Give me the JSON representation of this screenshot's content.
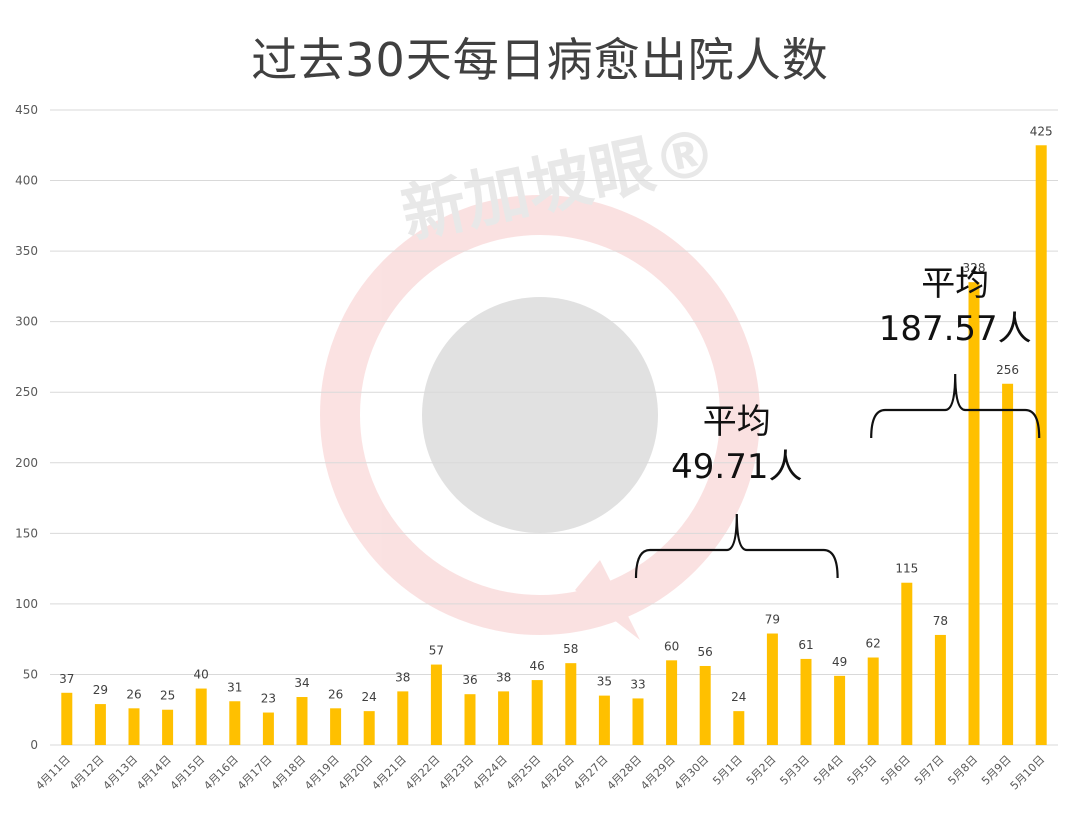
{
  "chart_data": {
    "type": "bar",
    "title": "过去30天每日病愈出院人数",
    "xlabel": "",
    "ylabel": "",
    "ylim": [
      0,
      450
    ],
    "yticks": [
      0,
      50,
      100,
      150,
      200,
      250,
      300,
      350,
      400,
      450
    ],
    "grid": true,
    "legend": "none",
    "bar_color": "#FFC000",
    "categories": [
      "4月11日",
      "4月12日",
      "4月13日",
      "4月14日",
      "4月15日",
      "4月16日",
      "4月17日",
      "4月18日",
      "4月19日",
      "4月20日",
      "4月21日",
      "4月22日",
      "4月23日",
      "4月24日",
      "4月25日",
      "4月26日",
      "4月27日",
      "4月28日",
      "4月29日",
      "4月30日",
      "5月1日",
      "5月2日",
      "5月3日",
      "5月4日",
      "5月5日",
      "5月6日",
      "5月7日",
      "5月8日",
      "5月9日",
      "5月10日"
    ],
    "values": [
      37,
      29,
      26,
      25,
      40,
      31,
      23,
      34,
      26,
      24,
      38,
      57,
      36,
      38,
      46,
      58,
      35,
      33,
      60,
      56,
      24,
      79,
      61,
      49,
      62,
      115,
      78,
      328,
      256,
      425
    ],
    "annotations": [
      {
        "line1": "平均",
        "line2": "49.71人",
        "from_category": "4月28日",
        "to_category": "5月4日"
      },
      {
        "line1": "平均",
        "line2": "187.57人",
        "from_category": "5月5日",
        "to_category": "5月10日"
      }
    ]
  },
  "watermark": {
    "text": "新加坡眼®"
  }
}
